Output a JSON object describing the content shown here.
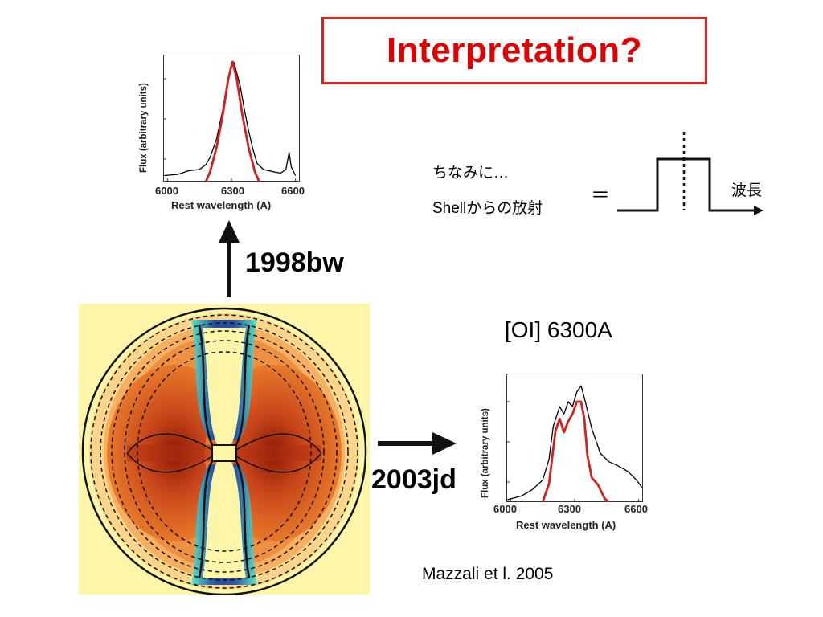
{
  "slide": {
    "title": "Interpretation?",
    "note_line1": "ちなみに…",
    "note_line2": "Shellからの放射",
    "equals": "＝",
    "wavelength_label": "波長",
    "line_label": "[OI] 6300A",
    "citation": "Mazzali et l. 2005",
    "label_1998bw": "1998bw",
    "label_2003jd": "2003jd"
  },
  "colors": {
    "title_red": "#e00000",
    "model_red": "#d42020",
    "observed": "#000000",
    "map_bg": "#fdf6a8",
    "map_orange": "#e06a20",
    "map_cyan": "#3fe0c0",
    "map_blue": "#1a3aa0"
  },
  "chart_data": [
    {
      "type": "line",
      "name": "1998bw",
      "xlabel": "Rest wavelength (A)",
      "ylabel": "Flux (arbitrary units)",
      "xlim": [
        5980,
        6620
      ],
      "ylim": [
        0,
        1.05
      ],
      "xticks": [
        6000,
        6300,
        6600
      ],
      "series": [
        {
          "id": "observed",
          "color": "#000000",
          "points": [
            [
              5985,
              0.05
            ],
            [
              6050,
              0.06
            ],
            [
              6100,
              0.09
            ],
            [
              6150,
              0.1
            ],
            [
              6180,
              0.14
            ],
            [
              6200,
              0.2
            ],
            [
              6230,
              0.35
            ],
            [
              6260,
              0.6
            ],
            [
              6280,
              0.82
            ],
            [
              6300,
              0.96
            ],
            [
              6310,
              0.99
            ],
            [
              6320,
              0.93
            ],
            [
              6340,
              0.8
            ],
            [
              6360,
              0.6
            ],
            [
              6380,
              0.42
            ],
            [
              6400,
              0.27
            ],
            [
              6420,
              0.15
            ],
            [
              6450,
              0.1
            ],
            [
              6500,
              0.08
            ],
            [
              6530,
              0.07
            ],
            [
              6555,
              0.1
            ],
            [
              6570,
              0.24
            ],
            [
              6580,
              0.12
            ],
            [
              6600,
              0.05
            ]
          ]
        },
        {
          "id": "model",
          "color": "#d42020",
          "points": [
            [
              6180,
              0.0
            ],
            [
              6200,
              0.08
            ],
            [
              6230,
              0.28
            ],
            [
              6260,
              0.56
            ],
            [
              6285,
              0.85
            ],
            [
              6305,
              0.99
            ],
            [
              6325,
              0.85
            ],
            [
              6350,
              0.56
            ],
            [
              6380,
              0.28
            ],
            [
              6410,
              0.08
            ],
            [
              6430,
              0.0
            ]
          ]
        }
      ]
    },
    {
      "type": "line",
      "name": "2003jd",
      "xlabel": "Rest wavelength (A)",
      "ylabel": "Flux (arbitrary units)",
      "xlim": [
        5980,
        6620
      ],
      "ylim": [
        0,
        1.05
      ],
      "xticks": [
        6000,
        6300,
        6600
      ],
      "series": [
        {
          "id": "observed",
          "color": "#000000",
          "points": [
            [
              5985,
              0.02
            ],
            [
              6050,
              0.05
            ],
            [
              6100,
              0.1
            ],
            [
              6150,
              0.18
            ],
            [
              6180,
              0.35
            ],
            [
              6200,
              0.62
            ],
            [
              6230,
              0.78
            ],
            [
              6250,
              0.72
            ],
            [
              6270,
              0.82
            ],
            [
              6290,
              0.78
            ],
            [
              6310,
              0.9
            ],
            [
              6330,
              0.95
            ],
            [
              6350,
              0.82
            ],
            [
              6380,
              0.6
            ],
            [
              6420,
              0.4
            ],
            [
              6460,
              0.33
            ],
            [
              6500,
              0.3
            ],
            [
              6550,
              0.25
            ],
            [
              6590,
              0.18
            ],
            [
              6615,
              0.12
            ]
          ]
        },
        {
          "id": "model",
          "color": "#d42020",
          "points": [
            [
              6150,
              0.0
            ],
            [
              6180,
              0.15
            ],
            [
              6210,
              0.58
            ],
            [
              6230,
              0.68
            ],
            [
              6250,
              0.57
            ],
            [
              6270,
              0.66
            ],
            [
              6290,
              0.72
            ],
            [
              6310,
              0.82
            ],
            [
              6330,
              0.82
            ],
            [
              6345,
              0.68
            ],
            [
              6360,
              0.38
            ],
            [
              6380,
              0.2
            ],
            [
              6410,
              0.14
            ],
            [
              6440,
              0.03
            ],
            [
              6460,
              0.0
            ]
          ]
        }
      ]
    }
  ]
}
